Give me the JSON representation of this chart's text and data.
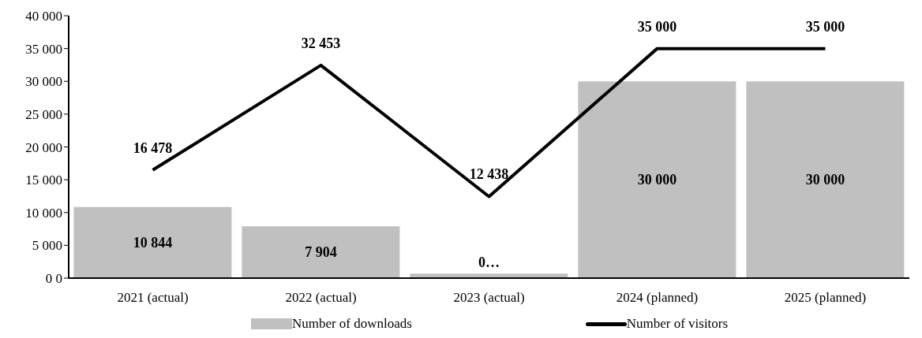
{
  "chart_data": {
    "type": "bar",
    "categories": [
      "2021 (actual)",
      "2022 (actual)",
      "2023 (actual)",
      "2024 (planned)",
      "2025 (planned)"
    ],
    "series": [
      {
        "name": "Number of downloads",
        "color": "#c0c0c0",
        "values": [
          10844,
          7904,
          700,
          30000,
          30000
        ],
        "value_labels": [
          "10 844",
          "7 904",
          "0…",
          "30 000",
          "30 000"
        ]
      },
      {
        "name": "Number of visitors",
        "type": "line",
        "color": "#000000",
        "values": [
          16478,
          32453,
          12438,
          35000,
          35000
        ],
        "value_labels": [
          "16 478",
          "32 453",
          "12 438",
          "35 000",
          "35 000"
        ]
      }
    ],
    "ylim": [
      0,
      40000
    ],
    "yticks": [
      {
        "value": 0,
        "label": "0 0"
      },
      {
        "value": 5000,
        "label": "5 000"
      },
      {
        "value": 10000,
        "label": "10 000"
      },
      {
        "value": 15000,
        "label": "15 000"
      },
      {
        "value": 20000,
        "label": "20 000"
      },
      {
        "value": 25000,
        "label": "25 000"
      },
      {
        "value": 30000,
        "label": "30 000"
      },
      {
        "value": 35000,
        "label": "35 000"
      },
      {
        "value": 40000,
        "label": "40 000"
      }
    ],
    "grid": false,
    "legend": "bottom",
    "marker": "none",
    "line_style": "solid"
  }
}
